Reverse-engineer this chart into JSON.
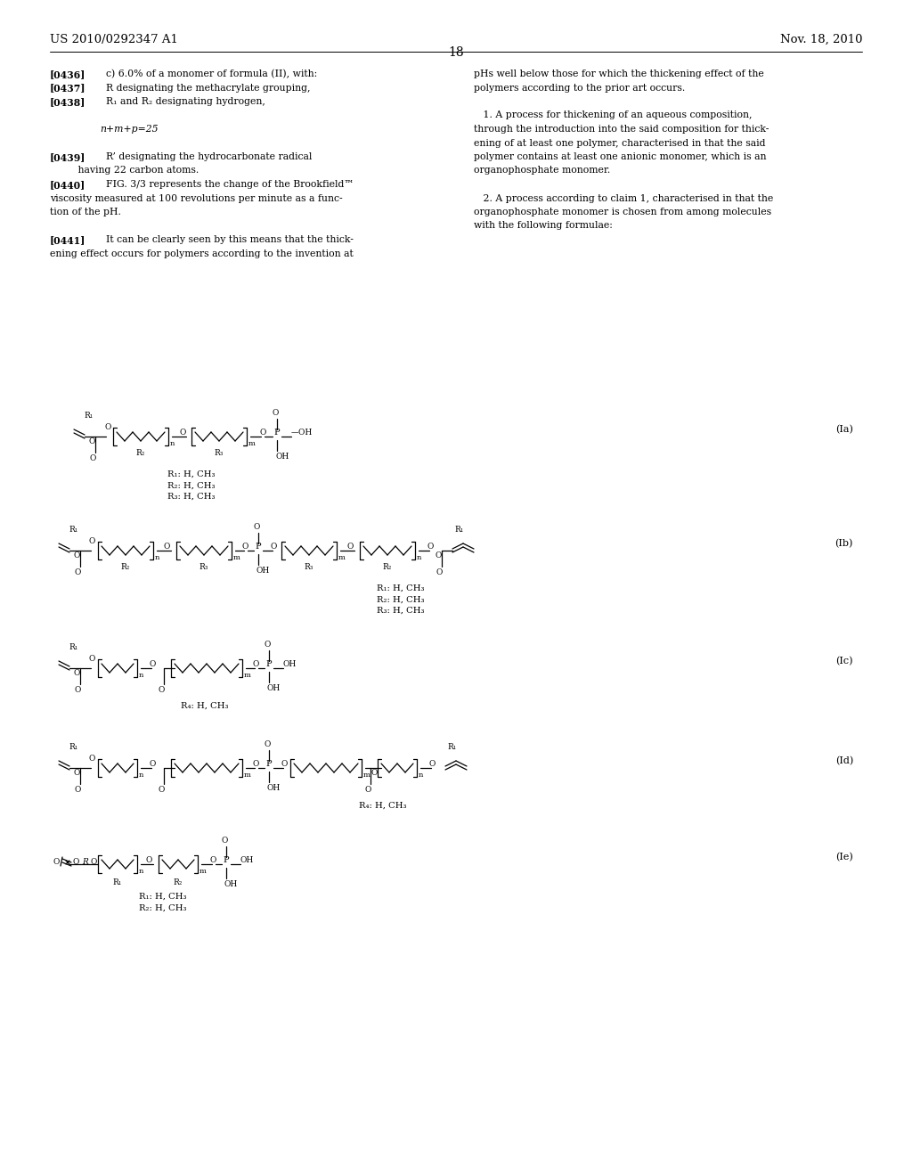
{
  "background_color": "#ffffff",
  "header_left": "US 2010/0292347 A1",
  "header_right": "Nov. 18, 2010",
  "page_number": "18",
  "formula_labels": [
    "(Ia)",
    "(Ib)",
    "(Ic)",
    "(Id)",
    "(Ie)"
  ]
}
